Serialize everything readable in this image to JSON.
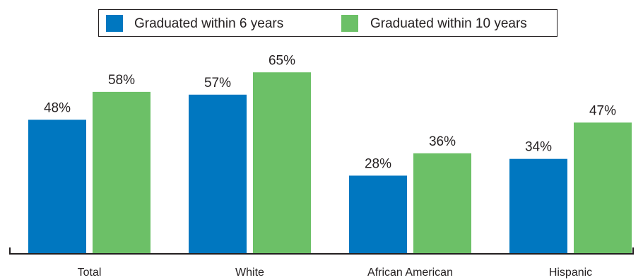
{
  "chart_data": {
    "type": "bar",
    "categories": [
      "Total",
      "White",
      "African American",
      "Hispanic"
    ],
    "series": [
      {
        "name": "Graduated within 6 years",
        "values": [
          48,
          57,
          28,
          34
        ],
        "labels": [
          "48%",
          "57%",
          "28%",
          "34%"
        ],
        "color": "#0077c0"
      },
      {
        "name": "Graduated within 10 years",
        "values": [
          58,
          65,
          36,
          47
        ],
        "labels": [
          "58%",
          "65%",
          "36%",
          "47%"
        ],
        "color": "#6cc067"
      }
    ],
    "title": "",
    "xlabel": "",
    "ylabel": "",
    "ylim": [
      0,
      70
    ],
    "grid": false,
    "legend": "top-center"
  }
}
